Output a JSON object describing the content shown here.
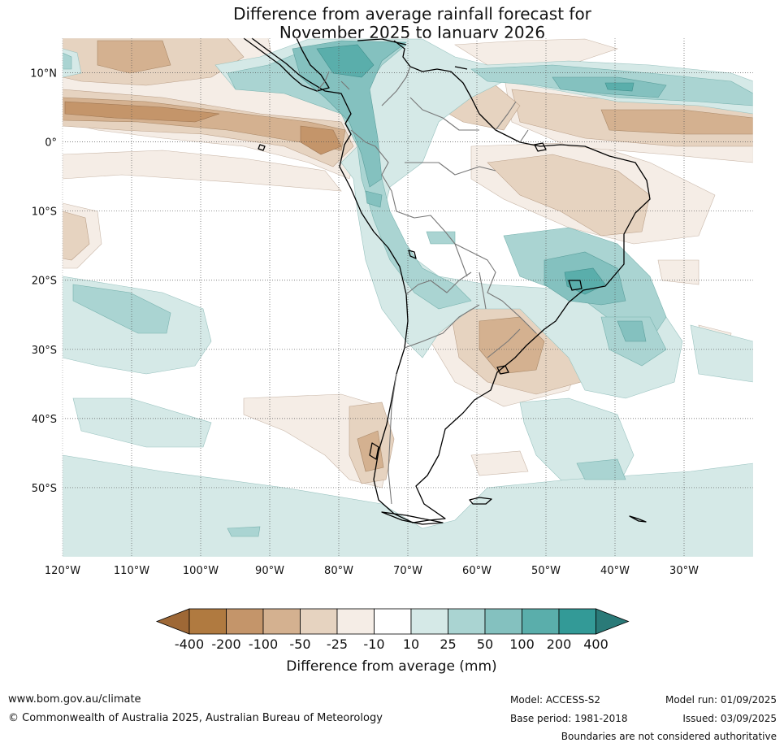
{
  "title_line1": "Difference from average rainfall forecast for",
  "title_line2": "November 2025 to January 2026",
  "lat_labels": [
    "10°N",
    "0°",
    "10°S",
    "20°S",
    "30°S",
    "40°S",
    "50°S"
  ],
  "lat_values": [
    10,
    0,
    -10,
    -20,
    -30,
    -40,
    -50
  ],
  "lon_labels": [
    "120°W",
    "110°W",
    "100°W",
    "90°W",
    "80°W",
    "70°W",
    "60°W",
    "50°W",
    "40°W",
    "30°W"
  ],
  "lon_values": [
    -120,
    -110,
    -100,
    -90,
    -80,
    -70,
    -60,
    -50,
    -40,
    -30
  ],
  "extent": {
    "lon_min": -120,
    "lon_max": -20,
    "lat_min": -60,
    "lat_max": 15
  },
  "colorbar": {
    "title": "Difference from average (mm)",
    "tick_labels": [
      "-400",
      "-200",
      "-100",
      "-50",
      "-25",
      "-10",
      "10",
      "25",
      "50",
      "100",
      "200",
      "400"
    ],
    "colors": [
      "#9e6836",
      "#b07a40",
      "#c4956a",
      "#d4b190",
      "#e6d3c0",
      "#f5ede6",
      "#ffffff",
      "#d5e9e7",
      "#aad4d2",
      "#84c1bf",
      "#5aaeab",
      "#339a97",
      "#2a7a78"
    ]
  },
  "footer": {
    "website": "www.bom.gov.au/climate",
    "copyright": "© Commonwealth of Australia 2025, Australian Bureau of Meteorology",
    "model": "Model: ACCESS-S2",
    "base_period": "Base period: 1981-2018",
    "model_run": "Model run: 01/09/2025",
    "issued": "Issued: 03/09/2025",
    "disclaimer": "Boundaries are not considered authoritative"
  }
}
